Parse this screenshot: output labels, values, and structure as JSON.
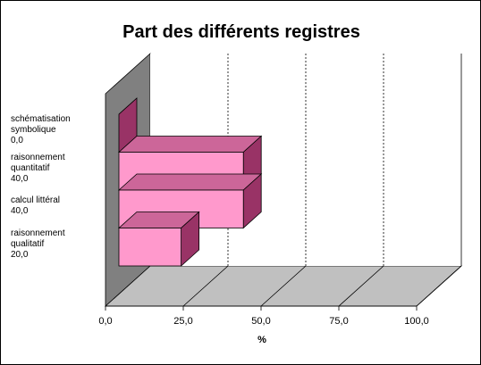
{
  "chart_data": {
    "type": "bar3d-horizontal",
    "title": "Part des différents registres",
    "categories": [
      "schématisation symbolique",
      "raisonnement quantitatif",
      "calcul littéral",
      "raisonnement qualitatif"
    ],
    "values": [
      0,
      40,
      40,
      20
    ],
    "value_labels": [
      "0,0",
      "40,0",
      "40,0",
      "20,0"
    ],
    "color": "#ff99cc",
    "xlabel": "%",
    "xlim": [
      0,
      100
    ],
    "xticks": [
      {
        "value": 0,
        "label": "0,0"
      },
      {
        "value": 25,
        "label": "25,0"
      },
      {
        "value": 50,
        "label": "50,0"
      },
      {
        "value": 75,
        "label": "75,0"
      },
      {
        "value": 100,
        "label": "100,0"
      }
    ],
    "grid": true
  }
}
